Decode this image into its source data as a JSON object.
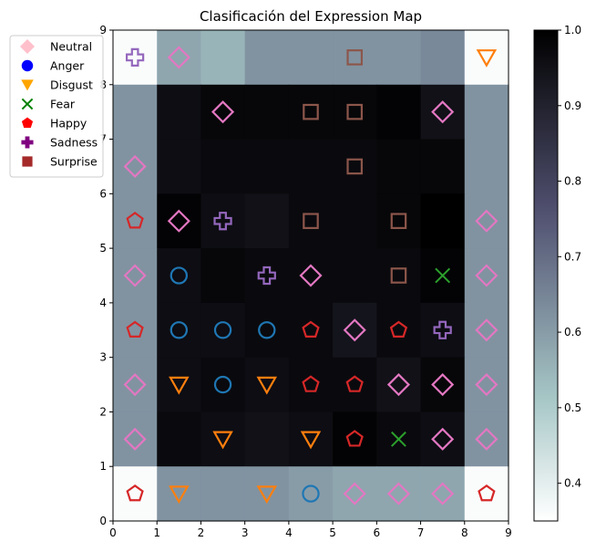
{
  "chart_data": {
    "type": "heatmap",
    "title": "Clasificación del Expression Map",
    "xlim": [
      0,
      9
    ],
    "ylim": [
      0,
      9
    ],
    "x_ticks": [
      "0",
      "1",
      "2",
      "3",
      "4",
      "5",
      "6",
      "7",
      "8",
      "9"
    ],
    "y_ticks": [
      "0",
      "1",
      "2",
      "3",
      "4",
      "5",
      "6",
      "7",
      "8",
      "9"
    ],
    "grid": false,
    "legend_position": "upper-left (outside)",
    "colormap": "bone_r",
    "colorbar": {
      "min": 0.35,
      "max": 1.0,
      "ticks": [
        "0.4",
        "0.5",
        "0.6",
        "0.7",
        "0.8",
        "0.9",
        "1.0"
      ],
      "tick_values": [
        0.4,
        0.5,
        0.6,
        0.7,
        0.8,
        0.9,
        1.0
      ]
    },
    "heatmap_rows_top_to_bottom": [
      [
        0.36,
        0.58,
        0.55,
        0.62,
        0.62,
        0.62,
        0.62,
        0.64,
        0.36
      ],
      [
        0.62,
        0.96,
        0.98,
        0.98,
        0.98,
        0.98,
        0.99,
        0.95,
        0.62
      ],
      [
        0.62,
        0.96,
        0.97,
        0.97,
        0.97,
        0.97,
        0.98,
        0.98,
        0.62
      ],
      [
        0.62,
        0.99,
        0.96,
        0.95,
        0.97,
        0.97,
        0.98,
        1.0,
        0.62
      ],
      [
        0.62,
        0.96,
        0.98,
        0.97,
        0.97,
        0.97,
        0.97,
        0.99,
        0.62
      ],
      [
        0.62,
        0.96,
        0.96,
        0.97,
        0.97,
        0.94,
        0.97,
        0.96,
        0.62
      ],
      [
        0.62,
        0.96,
        0.97,
        0.96,
        0.97,
        0.97,
        0.95,
        0.98,
        0.62
      ],
      [
        0.62,
        0.97,
        0.96,
        0.95,
        0.96,
        0.99,
        0.97,
        0.96,
        0.62
      ],
      [
        0.36,
        0.62,
        0.62,
        0.62,
        0.6,
        0.58,
        0.58,
        0.58,
        0.36
      ]
    ],
    "series": [
      {
        "name": "Neutral",
        "legend_marker": "diamond",
        "legend_color": "#ffc0cb",
        "color": "#e377c2",
        "marker": "diamond",
        "points": [
          [
            1.5,
            8.5
          ],
          [
            2.5,
            7.5
          ],
          [
            7.5,
            7.5
          ],
          [
            0.5,
            6.5
          ],
          [
            1.5,
            5.5
          ],
          [
            8.5,
            5.5
          ],
          [
            0.5,
            4.5
          ],
          [
            4.5,
            4.5
          ],
          [
            8.5,
            4.5
          ],
          [
            5.5,
            3.5
          ],
          [
            8.5,
            3.5
          ],
          [
            0.5,
            2.5
          ],
          [
            6.5,
            2.5
          ],
          [
            7.5,
            2.5
          ],
          [
            8.5,
            2.5
          ],
          [
            0.5,
            1.5
          ],
          [
            7.5,
            1.5
          ],
          [
            8.5,
            1.5
          ],
          [
            5.5,
            0.5
          ],
          [
            6.5,
            0.5
          ],
          [
            7.5,
            0.5
          ]
        ]
      },
      {
        "name": "Anger",
        "legend_marker": "circle",
        "legend_color": "#0000ff",
        "color": "#1f77b4",
        "marker": "circle",
        "points": [
          [
            1.5,
            4.5
          ],
          [
            1.5,
            3.5
          ],
          [
            2.5,
            3.5
          ],
          [
            3.5,
            3.5
          ],
          [
            2.5,
            2.5
          ],
          [
            4.5,
            0.5
          ]
        ]
      },
      {
        "name": "Disgust",
        "legend_marker": "triangle-down",
        "legend_color": "#ffa500",
        "color": "#ff7f0e",
        "marker": "triangle-down",
        "points": [
          [
            8.5,
            8.5
          ],
          [
            1.5,
            2.5
          ],
          [
            3.5,
            2.5
          ],
          [
            2.5,
            1.5
          ],
          [
            4.5,
            1.5
          ],
          [
            1.5,
            0.5
          ],
          [
            3.5,
            0.5
          ]
        ]
      },
      {
        "name": "Fear",
        "legend_marker": "x",
        "legend_color": "#008000",
        "color": "#2ca02c",
        "marker": "x",
        "points": [
          [
            7.5,
            4.5
          ],
          [
            6.5,
            1.5
          ]
        ]
      },
      {
        "name": "Happy",
        "legend_marker": "pentagon",
        "legend_color": "#ff0000",
        "color": "#d62728",
        "marker": "pentagon",
        "points": [
          [
            0.5,
            5.5
          ],
          [
            0.5,
            3.5
          ],
          [
            4.5,
            3.5
          ],
          [
            6.5,
            3.5
          ],
          [
            4.5,
            2.5
          ],
          [
            5.5,
            2.5
          ],
          [
            5.5,
            1.5
          ],
          [
            0.5,
            0.5
          ],
          [
            8.5,
            0.5
          ]
        ]
      },
      {
        "name": "Sadness",
        "legend_marker": "plus",
        "legend_color": "#800080",
        "color": "#9467bd",
        "marker": "plus",
        "points": [
          [
            0.5,
            8.5
          ],
          [
            2.5,
            5.5
          ],
          [
            3.5,
            4.5
          ],
          [
            7.5,
            3.5
          ]
        ]
      },
      {
        "name": "Surprise",
        "legend_marker": "square",
        "legend_color": "#a52a2a",
        "color": "#8c564b",
        "marker": "square",
        "points": [
          [
            5.5,
            8.5
          ],
          [
            4.5,
            7.5
          ],
          [
            5.5,
            7.5
          ],
          [
            5.5,
            6.5
          ],
          [
            4.5,
            5.5
          ],
          [
            6.5,
            5.5
          ],
          [
            6.5,
            4.5
          ]
        ]
      }
    ]
  }
}
